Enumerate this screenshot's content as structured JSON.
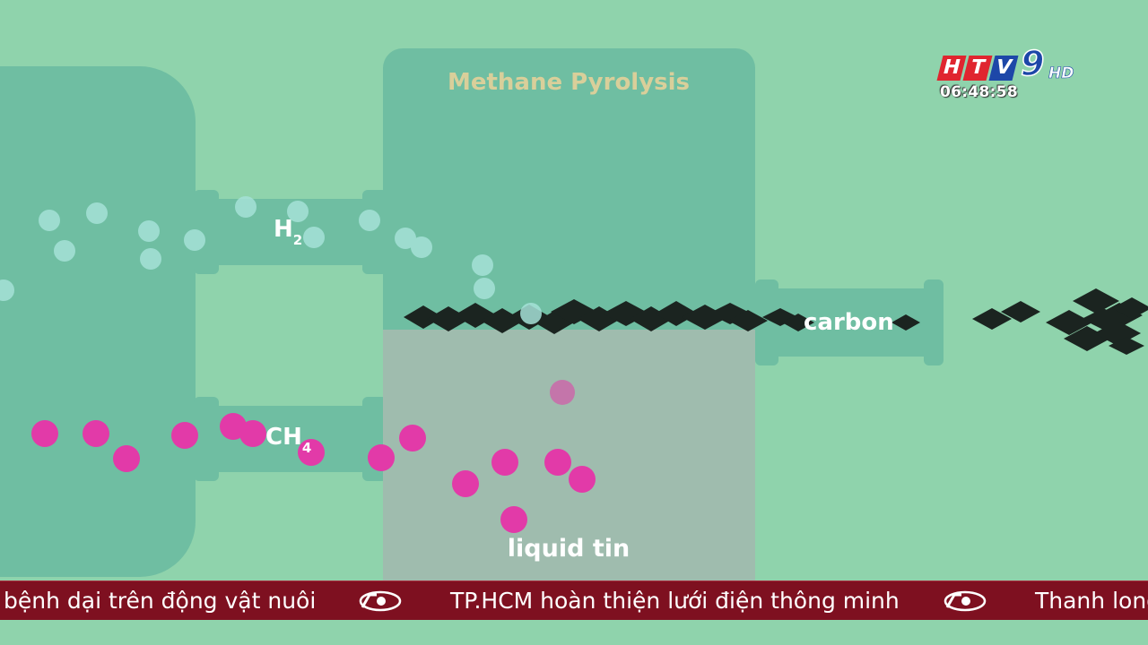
{
  "diagram": {
    "reactor_title": "Methane Pyrolysis",
    "h2_label": "H",
    "h2_sub": "2",
    "ch4_label": "CH",
    "ch4_sub": "4",
    "carbon_label": "carbon",
    "tin_label": "liquid tin"
  },
  "colors": {
    "background": "#8fd3ac",
    "vessel": "#6fbea2",
    "tin": "#9fbcae",
    "methane": "#e23aa8",
    "hydrogen": "#a6e2d8",
    "carbon": "#1b2420",
    "title": "#d9cf9a"
  },
  "overlay": {
    "channel": "HTV",
    "channel_number": "9",
    "channel_hd": "HD",
    "clock": "06:48:58"
  },
  "ticker": {
    "items": [
      "bệnh dại trên động vật nuôi",
      "TP.HCM hoàn thiện lưới điện thông minh",
      "Thanh long"
    ],
    "separator_icon": "60-seconds-logo-icon"
  }
}
